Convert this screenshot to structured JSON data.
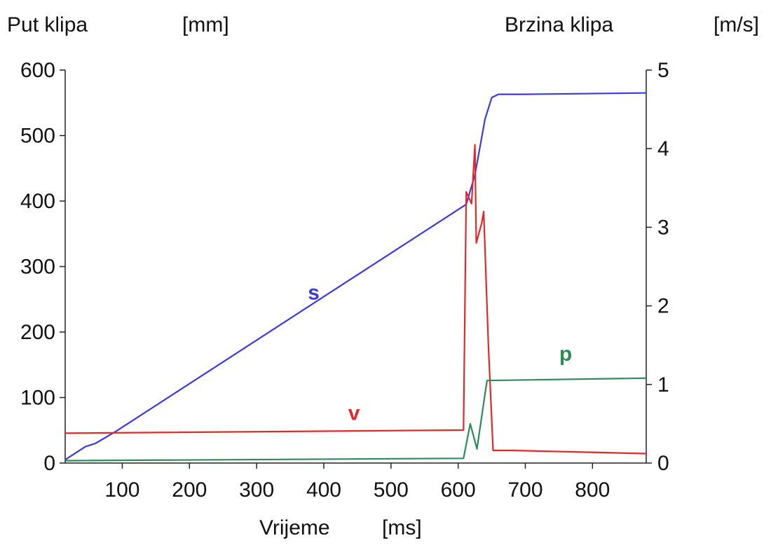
{
  "chart_data": {
    "type": "line",
    "left_axis": {
      "title": "Put klipa",
      "unit": "[mm]",
      "ticks": [
        0,
        100,
        200,
        300,
        400,
        500,
        600
      ],
      "range": [
        0,
        600
      ]
    },
    "right_axis": {
      "title": "Brzina klipa",
      "unit": "[m/s]",
      "ticks": [
        0,
        1,
        2,
        3,
        4,
        5
      ],
      "range": [
        0,
        5
      ]
    },
    "x_axis": {
      "title": "Vrijeme",
      "unit": "[ms]",
      "ticks": [
        100,
        200,
        300,
        400,
        500,
        600,
        700,
        800
      ],
      "range": [
        15,
        880
      ]
    },
    "grid": false,
    "series": [
      {
        "name": "s",
        "axis": "left",
        "color": "#3a3adf",
        "points": [
          [
            15,
            5
          ],
          [
            45,
            25
          ],
          [
            60,
            30
          ],
          [
            90,
            48
          ],
          [
            612,
            395
          ],
          [
            625,
            440
          ],
          [
            640,
            525
          ],
          [
            650,
            558
          ],
          [
            660,
            563
          ],
          [
            700,
            563
          ],
          [
            880,
            565
          ]
        ]
      },
      {
        "name": "v",
        "axis": "right",
        "color": "#e02a2a",
        "points": [
          [
            15,
            0.38
          ],
          [
            608,
            0.42
          ],
          [
            612,
            3.45
          ],
          [
            620,
            3.3
          ],
          [
            625,
            4.05
          ],
          [
            627,
            2.8
          ],
          [
            635,
            3.05
          ],
          [
            638,
            3.2
          ],
          [
            645,
            1.5
          ],
          [
            652,
            0.16
          ],
          [
            680,
            0.16
          ],
          [
            880,
            0.12
          ]
        ]
      },
      {
        "name": "p",
        "axis": "right",
        "color": "#2e8b57",
        "points": [
          [
            15,
            0.03
          ],
          [
            608,
            0.06
          ],
          [
            618,
            0.5
          ],
          [
            628,
            0.18
          ],
          [
            640,
            0.88
          ],
          [
            643,
            1.05
          ],
          [
            880,
            1.08
          ]
        ]
      }
    ]
  },
  "colors": {
    "axis": "#222222",
    "background": "#ffffff"
  }
}
